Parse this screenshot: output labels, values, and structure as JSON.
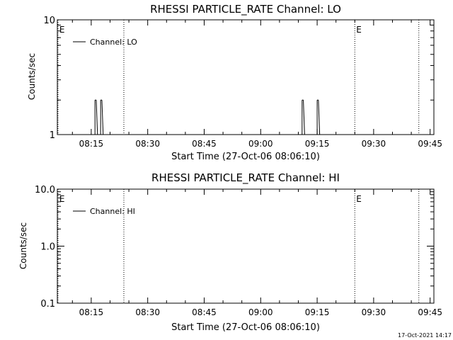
{
  "timestamp": "17-Oct-2021 14:17",
  "chart_data": [
    {
      "type": "line",
      "title": "RHESSI PARTICLE_RATE Channel: LO",
      "xlabel": "Start Time (27-Oct-06 08:06:10)",
      "ylabel": "Counts/sec",
      "y_scale": "log",
      "ylim": [
        1,
        10
      ],
      "y_ticks": [
        {
          "value": 1,
          "label": "1"
        },
        {
          "value": 10,
          "label": "10"
        }
      ],
      "xlim": [
        "08:06",
        "09:46"
      ],
      "x_ticks": [
        "08:15",
        "08:30",
        "08:45",
        "09:00",
        "09:15",
        "09:30",
        "09:45"
      ],
      "legend": "top-left",
      "series": [
        {
          "name": "Channel: LO",
          "points": [
            [
              "08:16:00",
              1
            ],
            [
              "08:16:20",
              2
            ],
            [
              "08:16:40",
              1
            ],
            [
              "08:17:30",
              1
            ],
            [
              "08:17:50",
              2
            ],
            [
              "08:18:10",
              1
            ],
            [
              "09:11:00",
              1
            ],
            [
              "09:11:20",
              2
            ],
            [
              "09:11:40",
              1
            ],
            [
              "09:15:00",
              1
            ],
            [
              "09:15:20",
              2
            ],
            [
              "09:15:40",
              1
            ]
          ]
        }
      ],
      "markers": [
        {
          "time": "08:06:10",
          "label": "E"
        },
        {
          "time": "08:23:40",
          "label": ""
        },
        {
          "time": "09:25:00",
          "label": "E"
        },
        {
          "time": "09:42:00",
          "label": ""
        }
      ]
    },
    {
      "type": "line",
      "title": "RHESSI PARTICLE_RATE Channel: HI",
      "xlabel": "Start Time (27-Oct-06 08:06:10)",
      "ylabel": "Counts/sec",
      "y_scale": "log",
      "ylim": [
        0.1,
        10
      ],
      "y_ticks": [
        {
          "value": 0.1,
          "label": "0.1"
        },
        {
          "value": 1,
          "label": "1.0"
        },
        {
          "value": 10,
          "label": "10.0"
        }
      ],
      "xlim": [
        "08:06",
        "09:46"
      ],
      "x_ticks": [
        "08:15",
        "08:30",
        "08:45",
        "09:00",
        "09:15",
        "09:30",
        "09:45"
      ],
      "legend": "top-left",
      "series": [
        {
          "name": "Channel: HI",
          "points": []
        }
      ],
      "markers": [
        {
          "time": "08:06:10",
          "label": "E"
        },
        {
          "time": "08:23:40",
          "label": ""
        },
        {
          "time": "09:25:00",
          "label": "E"
        },
        {
          "time": "09:42:00",
          "label": ""
        }
      ]
    }
  ]
}
